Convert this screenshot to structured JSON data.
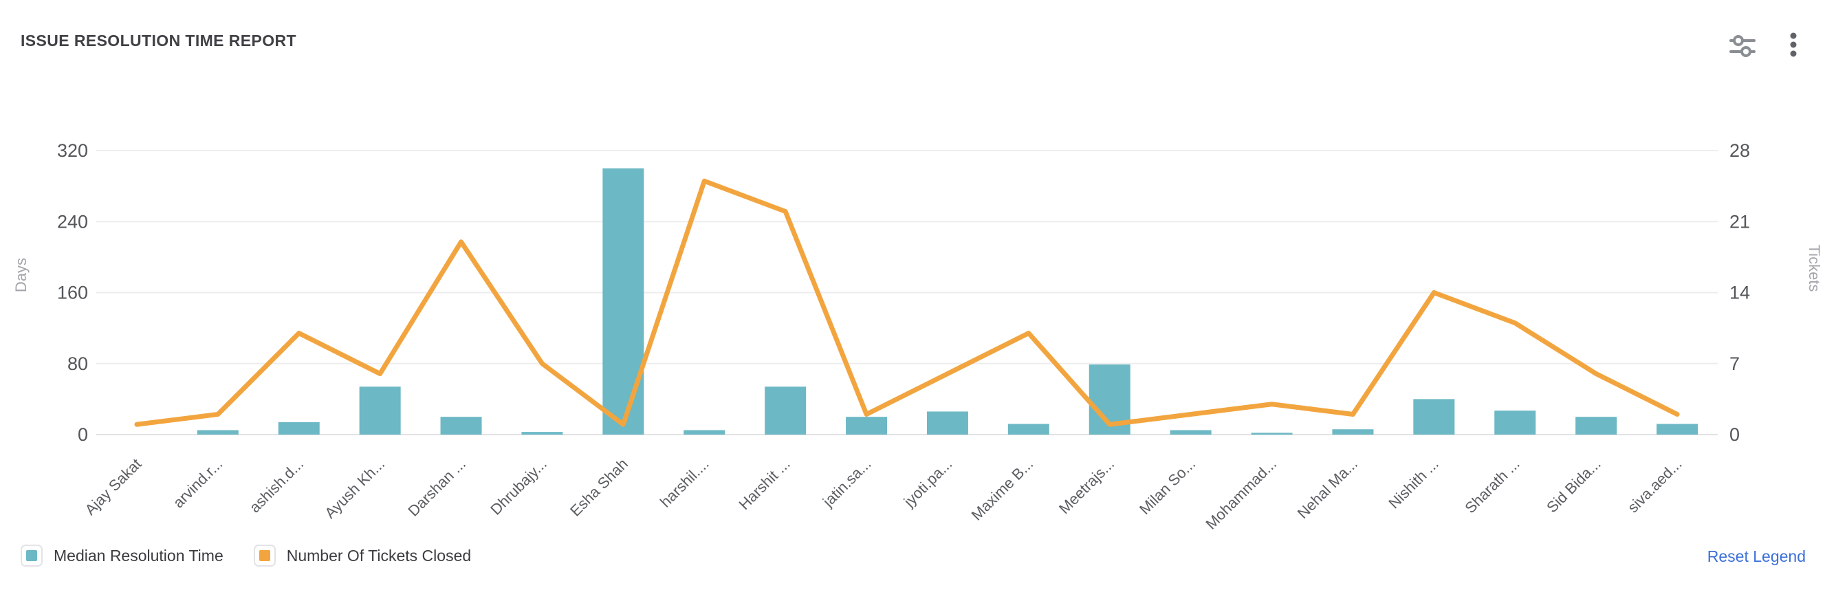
{
  "header": {
    "title": "ISSUE RESOLUTION TIME REPORT",
    "filter_icon": "sliders-filter-icon",
    "menu_icon": "kebab-menu-icon"
  },
  "legend": {
    "items": [
      {
        "label": "Median Resolution Time",
        "color": "#6CB8C4"
      },
      {
        "label": "Number Of Tickets Closed",
        "color": "#F2A53F"
      }
    ],
    "reset_label": "Reset Legend"
  },
  "chart_data": {
    "type": "bar",
    "title": "ISSUE RESOLUTION TIME REPORT",
    "categories": [
      "Ajay Sakat",
      "arvind.r...",
      "ashish.d...",
      "Ayush Kh...",
      "Darshan ...",
      "Dhrubajy...",
      "Esha Shah",
      "harshil....",
      "Harshit ...",
      "jatin.sa...",
      "jyoti.pa...",
      "Maxime B...",
      "Meetrajs...",
      "Milan So...",
      "Mohammad...",
      "Nehal Ma...",
      "Nishith ...",
      "Sharath ...",
      "Sid Bida...",
      "siva.aed..."
    ],
    "series": [
      {
        "name": "Median Resolution Time",
        "type": "bar",
        "axis": "left",
        "color": "#6CB8C4",
        "values": [
          0,
          5,
          14,
          54,
          20,
          3,
          300,
          5,
          54,
          20,
          26,
          12,
          79,
          5,
          2,
          6,
          40,
          27,
          20,
          12
        ]
      },
      {
        "name": "Number Of Tickets Closed",
        "type": "line",
        "axis": "right",
        "color": "#F2A53F",
        "values": [
          1,
          2,
          10,
          6,
          19,
          7,
          1,
          25,
          22,
          2,
          6,
          10,
          1,
          2,
          3,
          2,
          14,
          11,
          6,
          2
        ]
      }
    ],
    "left_axis": {
      "name": "Days",
      "ticks": [
        0,
        80,
        160,
        240,
        320
      ],
      "max": 320
    },
    "right_axis": {
      "name": "Tickets",
      "ticks": [
        0,
        7,
        14,
        21,
        28
      ],
      "max": 28
    },
    "grid": true,
    "legend_position": "bottom-left"
  },
  "style": {
    "tick_label_color": "#53565A",
    "x_label_color": "#5A5D61",
    "axis_name_color": "#A2A5AA",
    "grid_color": "#EDEDEF",
    "baseline_color": "#E2E2E5"
  }
}
